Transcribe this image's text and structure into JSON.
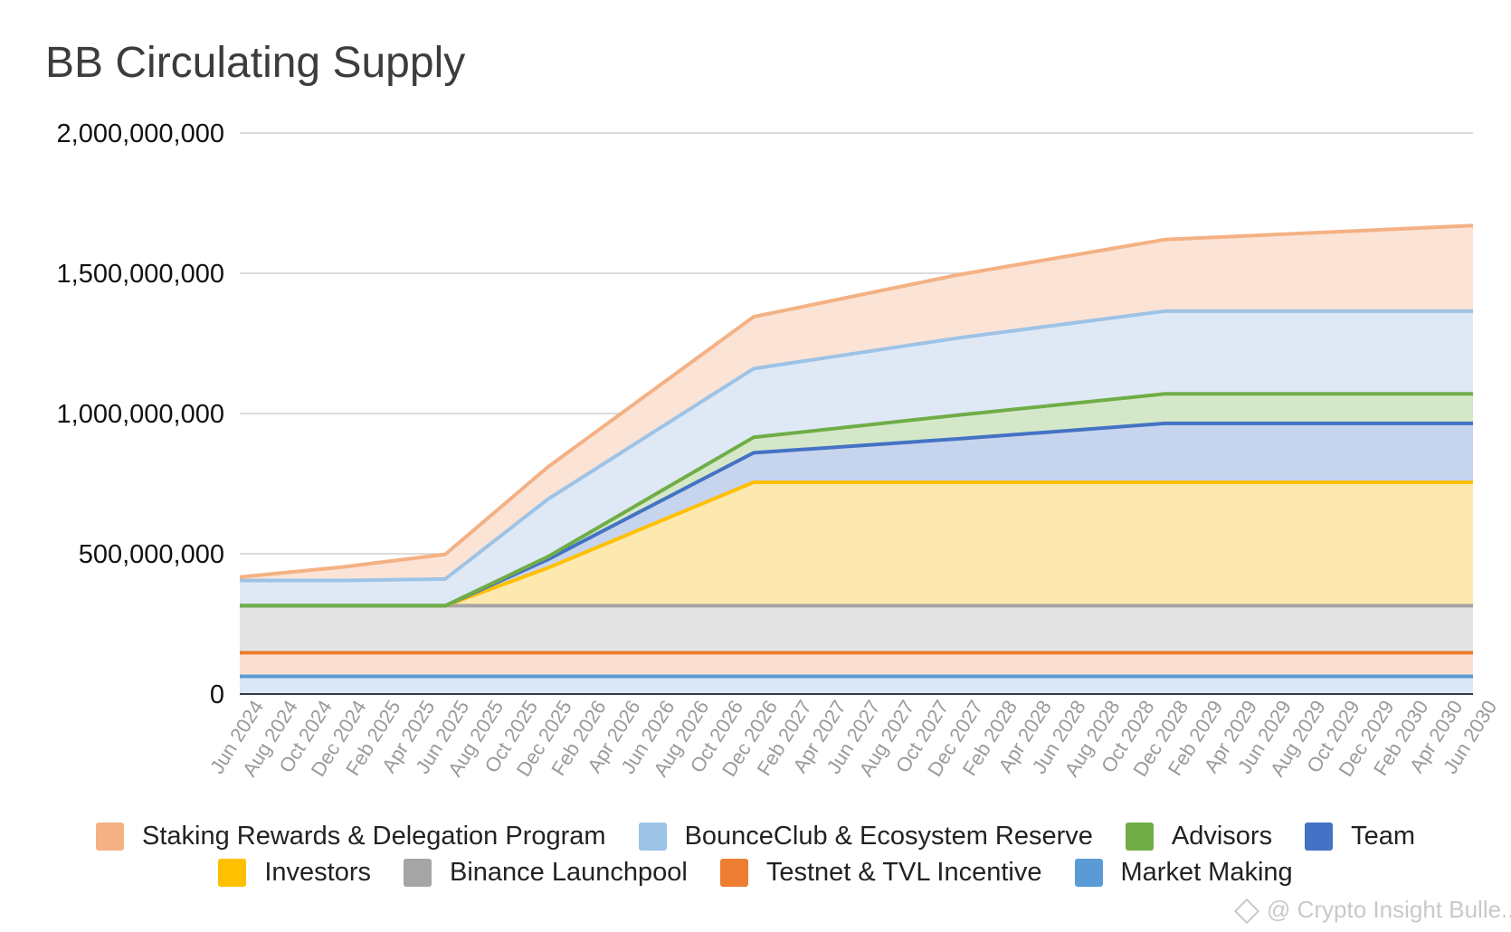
{
  "chart_data": {
    "type": "area",
    "stacked": true,
    "title": "BB Circulating Supply",
    "xlabel": "",
    "ylabel": "",
    "ylim": [
      0,
      2000000000
    ],
    "yticks": [
      0,
      500000000,
      1000000000,
      1500000000,
      2000000000
    ],
    "ytick_labels": [
      "0",
      "500,000,000",
      "1,000,000,000",
      "1,500,000,000",
      "2,000,000,000"
    ],
    "grid": true,
    "legend_position": "bottom",
    "x": [
      "2024-05",
      "2024-11",
      "2025-05",
      "2025-11",
      "2026-11",
      "2027-11",
      "2028-11",
      "2030-05"
    ],
    "xtick_labels": [
      "Jun 2024",
      "Aug 2024",
      "Oct 2024",
      "Dec 2024",
      "Feb 2025",
      "Apr 2025",
      "Jun 2025",
      "Aug 2025",
      "Oct 2025",
      "Dec 2025",
      "Feb 2026",
      "Apr 2026",
      "Jun 2026",
      "Aug 2026",
      "Oct 2026",
      "Dec 2026",
      "Feb 2027",
      "Apr 2027",
      "Jun 2027",
      "Aug 2027",
      "Oct 2027",
      "Dec 2027",
      "Feb 2028",
      "Apr 2028",
      "Jun 2028",
      "Aug 2028",
      "Oct 2028",
      "Dec 2028",
      "Feb 2029",
      "Apr 2029",
      "Jun 2029",
      "Aug 2029",
      "Oct 2029",
      "Dec 2029",
      "Feb 2030",
      "Apr 2030",
      "Jun 2030"
    ],
    "series": [
      {
        "name": "Market Making",
        "color": "#5b9bd5",
        "fill": "#dce8f6",
        "values": [
          63000000,
          63000000,
          63000000,
          63000000,
          63000000,
          63000000,
          63000000,
          63000000
        ]
      },
      {
        "name": "Testnet & TVL Incentive",
        "color": "#ed7d31",
        "fill": "#fbe0d2",
        "values": [
          84000000,
          84000000,
          84000000,
          84000000,
          84000000,
          84000000,
          84000000,
          84000000
        ]
      },
      {
        "name": "Binance Launchpool",
        "color": "#a5a5a5",
        "fill": "#e4e4e4",
        "values": [
          168000000,
          168000000,
          168000000,
          168000000,
          168000000,
          168000000,
          168000000,
          168000000
        ]
      },
      {
        "name": "Investors",
        "color": "#ffc000",
        "fill": "#fde9b0",
        "values": [
          0,
          0,
          0,
          135000000,
          440000000,
          440000000,
          440000000,
          440000000
        ]
      },
      {
        "name": "Team",
        "color": "#4472c4",
        "fill": "#c6d4ee",
        "values": [
          0,
          0,
          0,
          30000000,
          105000000,
          155000000,
          210000000,
          210000000
        ]
      },
      {
        "name": "Advisors",
        "color": "#70ad47",
        "fill": "#d4e8c9",
        "values": [
          0,
          0,
          0,
          10000000,
          55000000,
          85000000,
          105000000,
          105000000
        ]
      },
      {
        "name": "BounceClub & Ecosystem Reserve",
        "color": "#9dc3e6",
        "fill": "#dfe9f6",
        "values": [
          90000000,
          90000000,
          95000000,
          205000000,
          245000000,
          275000000,
          295000000,
          295000000
        ]
      },
      {
        "name": "Staking Rewards & Delegation Program",
        "color": "#f4b183",
        "fill": "#fbe3d6",
        "values": [
          12000000,
          48000000,
          88000000,
          115000000,
          185000000,
          225000000,
          255000000,
          305000000
        ]
      }
    ]
  },
  "legend_rows": [
    [
      "Staking Rewards & Delegation Program",
      "BounceClub & Ecosystem Reserve",
      "Advisors",
      "Team"
    ],
    [
      "Investors",
      "Binance Launchpool",
      "Testnet & TVL Incentive",
      "Market Making"
    ]
  ],
  "watermark": "@ Crypto Insight Bulle..."
}
